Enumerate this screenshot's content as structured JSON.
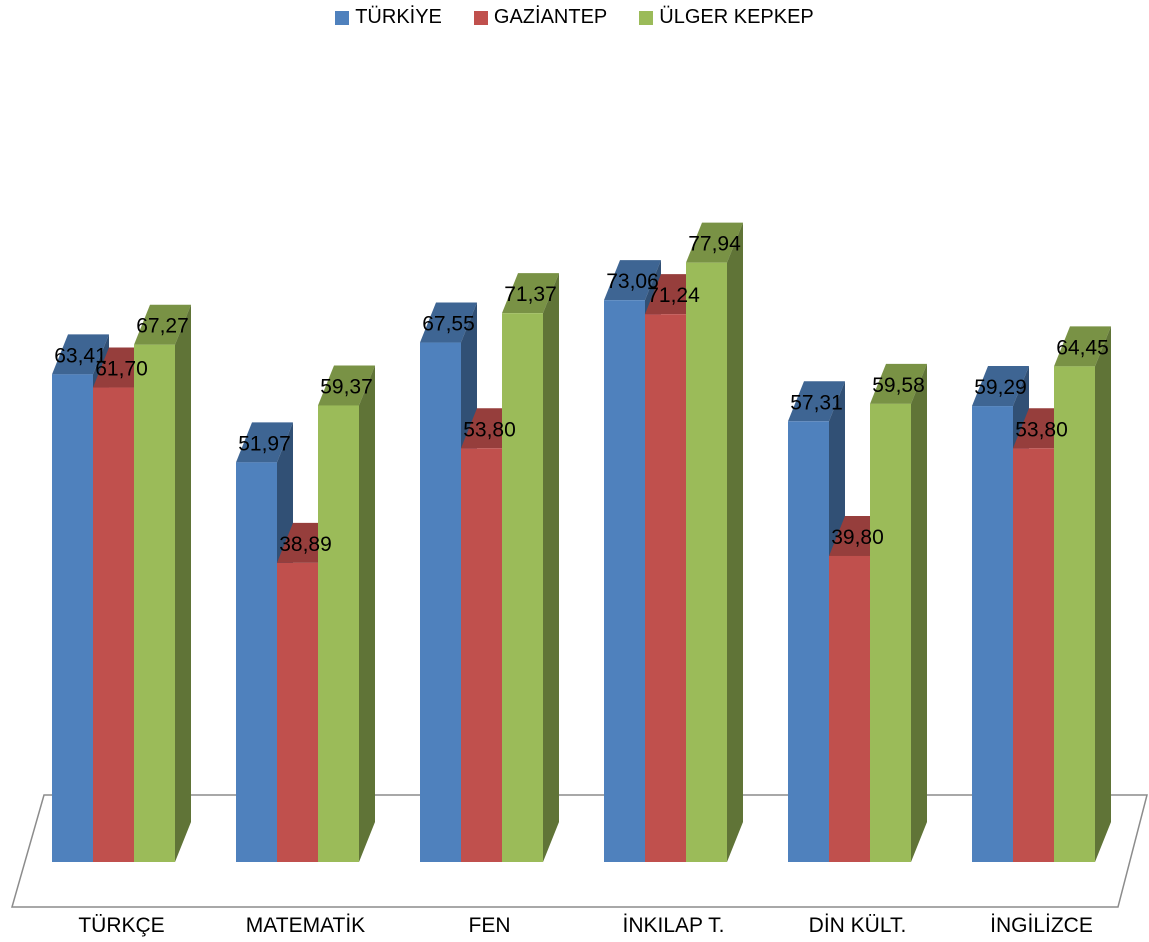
{
  "chart_data": {
    "type": "bar",
    "categories": [
      "TÜRKÇE",
      "MATEMATİK",
      "FEN",
      "İNKILAP T.",
      "DİN KÜLT.",
      "İNGİLİZCE"
    ],
    "series": [
      {
        "name": "TÜRKİYE",
        "color": "#4F81BD",
        "values": [
          63.41,
          51.97,
          67.55,
          73.06,
          57.31,
          59.29
        ],
        "labels": [
          "63,41",
          "51,97",
          "67,55",
          "73,06",
          "57,31",
          "59,29"
        ]
      },
      {
        "name": "GAZİANTEP",
        "color": "#C0504D",
        "values": [
          61.7,
          38.89,
          53.8,
          71.24,
          39.8,
          53.8
        ],
        "labels": [
          "61,70",
          "38,89",
          "53,80",
          "71,24",
          "39,80",
          "53,80"
        ]
      },
      {
        "name": "ÜLGER KEPKEP",
        "color": "#9BBB59",
        "values": [
          67.27,
          59.37,
          71.37,
          77.94,
          59.58,
          64.45
        ],
        "labels": [
          "67,27",
          "59,37",
          "71,37",
          "77,94",
          "59,58",
          "64,45"
        ]
      }
    ],
    "ylim": [
      0,
      90
    ],
    "grid": false,
    "legend_position": "top"
  }
}
